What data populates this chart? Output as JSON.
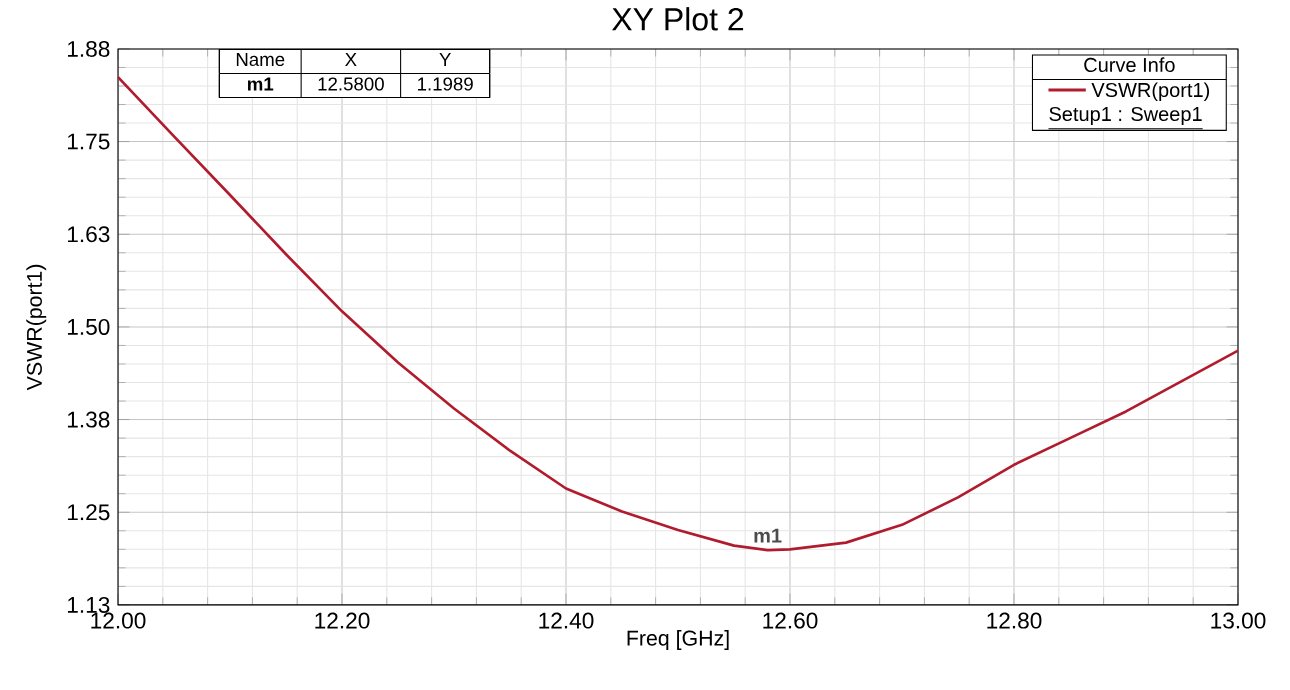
{
  "chart_data": {
    "type": "line",
    "title": "XY Plot 2",
    "xlabel": "Freq [GHz]",
    "ylabel": "VSWR(port1)",
    "legend_title": "Curve Info",
    "x": [
      12.0,
      12.05,
      12.1,
      12.15,
      12.2,
      12.25,
      12.3,
      12.35,
      12.4,
      12.45,
      12.5,
      12.55,
      12.58,
      12.6,
      12.65,
      12.7,
      12.75,
      12.8,
      12.85,
      12.9,
      12.95,
      13.0
    ],
    "series": [
      {
        "name": "VSWR(port1)",
        "color": "#b01c2e",
        "values": [
          1.837,
          1.757,
          1.678,
          1.598,
          1.521,
          1.452,
          1.39,
          1.333,
          1.282,
          1.251,
          1.226,
          1.205,
          1.1989,
          1.2,
          1.209,
          1.233,
          1.27,
          1.314,
          1.35,
          1.386,
          1.427,
          1.468
        ]
      }
    ],
    "xlim": [
      12.0,
      13.0
    ],
    "xticks": [
      {
        "value": 12.0,
        "label": "12.00"
      },
      {
        "value": 12.2,
        "label": "12.20"
      },
      {
        "value": 12.4,
        "label": "12.40"
      },
      {
        "value": 12.6,
        "label": "12.60"
      },
      {
        "value": 12.8,
        "label": "12.80"
      },
      {
        "value": 13.0,
        "label": "13.00"
      }
    ],
    "ylim": [
      1.125,
      1.875
    ],
    "yticks": [
      {
        "value": 1.125,
        "label": "1.13"
      },
      {
        "value": 1.25,
        "label": "1.25"
      },
      {
        "value": 1.375,
        "label": "1.38"
      },
      {
        "value": 1.5,
        "label": "1.50"
      },
      {
        "value": 1.625,
        "label": "1.63"
      },
      {
        "value": 1.75,
        "label": "1.75"
      },
      {
        "value": 1.875,
        "label": "1.88"
      }
    ],
    "annotations": [
      {
        "text": "m1",
        "x": 12.58,
        "y": 1.1989
      },
      "Name",
      "X",
      "Y",
      "m1",
      "12.5800",
      "1.1989",
      "Setup1 : Sweep1"
    ],
    "grid": true,
    "legend": "top right",
    "marker": "none",
    "line_style": "solid"
  }
}
